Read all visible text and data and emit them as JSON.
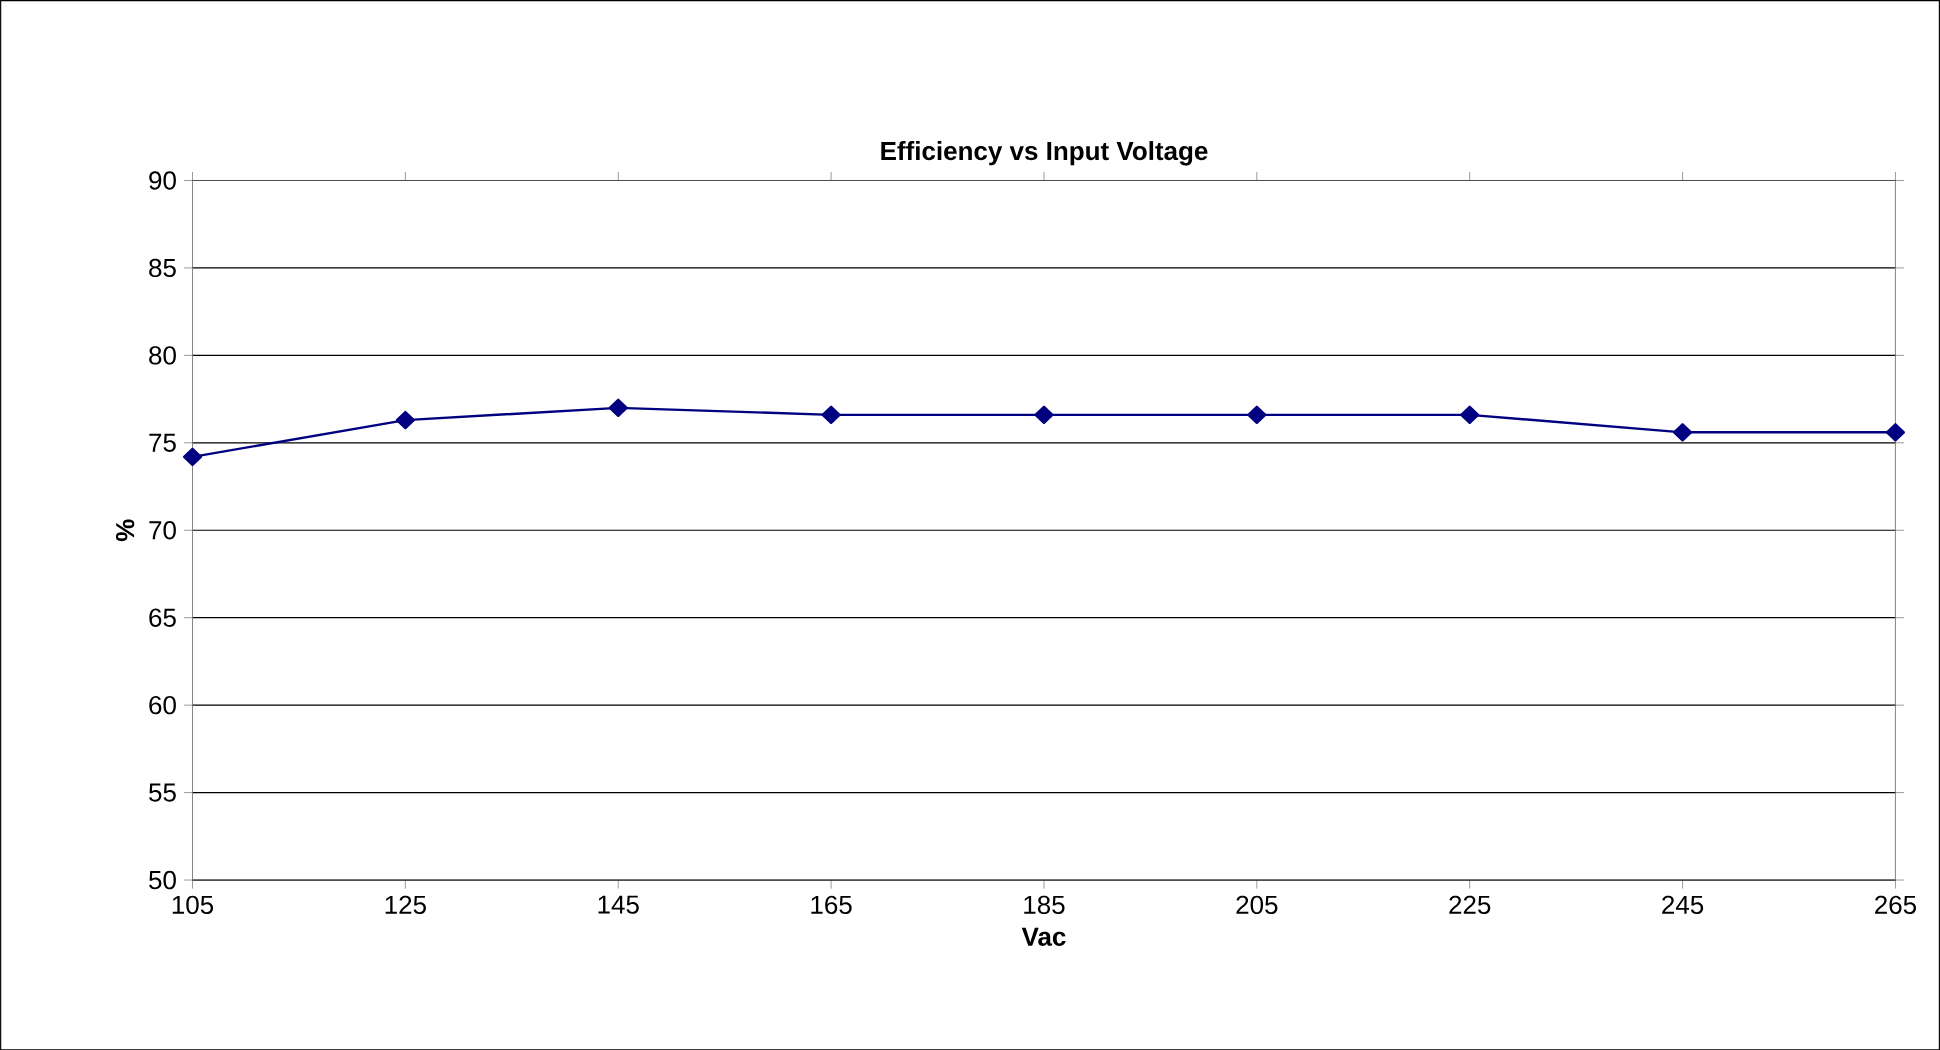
{
  "chart_data": {
    "type": "line",
    "title": "Efficiency vs Input Voltage",
    "xlabel": "Vac",
    "ylabel": "%",
    "x": [
      105,
      125,
      145,
      165,
      185,
      205,
      225,
      245,
      265
    ],
    "series": [
      {
        "color": "#000080",
        "values": [
          74.2,
          76.3,
          77.0,
          76.6,
          76.6,
          76.6,
          76.6,
          75.6,
          75.6
        ]
      }
    ],
    "xlim": [
      105,
      265
    ],
    "xticks": [
      105,
      125,
      145,
      165,
      185,
      205,
      225,
      245,
      265
    ],
    "ylim": [
      50,
      90
    ],
    "yticks": [
      50,
      55,
      60,
      65,
      70,
      75,
      80,
      85,
      90
    ],
    "grid": "y",
    "marker": "diamond",
    "line_style": "solid"
  }
}
